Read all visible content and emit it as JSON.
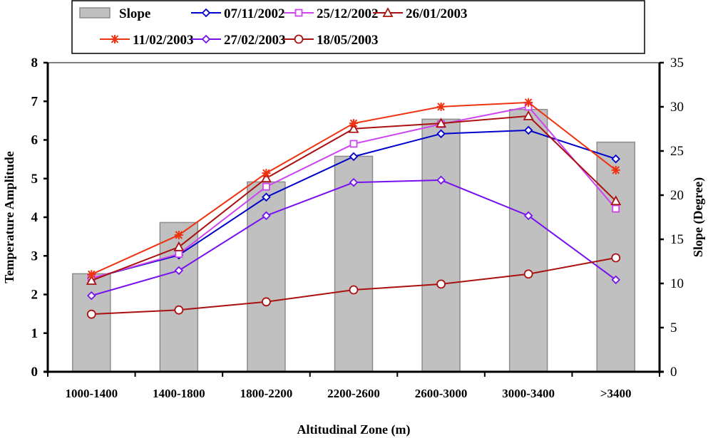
{
  "chart_data": {
    "type": "bar+line",
    "title": "",
    "xlabel": "Altitudinal Zone (m)",
    "ylabel": "Temperature Amplitude",
    "y2label": "Slope (Degree)",
    "categories": [
      "1000-1400",
      "1400-1800",
      "1800-2200",
      "2200-2600",
      "2600-3000",
      "3000-3400",
      ">3400"
    ],
    "ylim": [
      0,
      8
    ],
    "yticks": [
      0,
      1,
      2,
      3,
      4,
      5,
      6,
      7,
      8
    ],
    "y2lim": [
      0,
      35
    ],
    "y2ticks": [
      0,
      5,
      10,
      15,
      20,
      25,
      30,
      35
    ],
    "grid": false,
    "legend_position": "top",
    "bar_series": {
      "name": "Slope",
      "axis": "right",
      "color": "#c0c0c0",
      "edge_color": "#8c8c8c",
      "values": [
        11.1,
        16.9,
        21.5,
        24.4,
        28.6,
        29.7,
        26.0
      ]
    },
    "series": [
      {
        "name": "07/11/2002",
        "color": "#0000cc",
        "marker": "diamond",
        "values": [
          2.42,
          3.02,
          4.52,
          5.57,
          6.16,
          6.25,
          5.51
        ]
      },
      {
        "name": "25/12/2002",
        "color": "#cc44ee",
        "marker": "square",
        "values": [
          2.42,
          3.05,
          4.79,
          5.9,
          6.41,
          6.86,
          4.22
        ]
      },
      {
        "name": "26/01/2003",
        "color": "#aa1111",
        "marker": "triangle",
        "values": [
          2.36,
          3.23,
          5.01,
          6.29,
          6.43,
          6.62,
          4.42
        ]
      },
      {
        "name": "11/02/2003",
        "color": "#ee3311",
        "marker": "asterisk",
        "values": [
          2.52,
          3.54,
          5.14,
          6.43,
          6.86,
          6.97,
          5.22
        ]
      },
      {
        "name": "27/02/2003",
        "color": "#7711ee",
        "marker": "diamond",
        "values": [
          1.97,
          2.62,
          4.04,
          4.9,
          4.96,
          4.04,
          2.38
        ]
      },
      {
        "name": "18/05/2003",
        "color": "#aa1111",
        "marker": "circle",
        "values": [
          1.49,
          1.6,
          1.81,
          2.12,
          2.27,
          2.53,
          2.95
        ]
      }
    ]
  }
}
